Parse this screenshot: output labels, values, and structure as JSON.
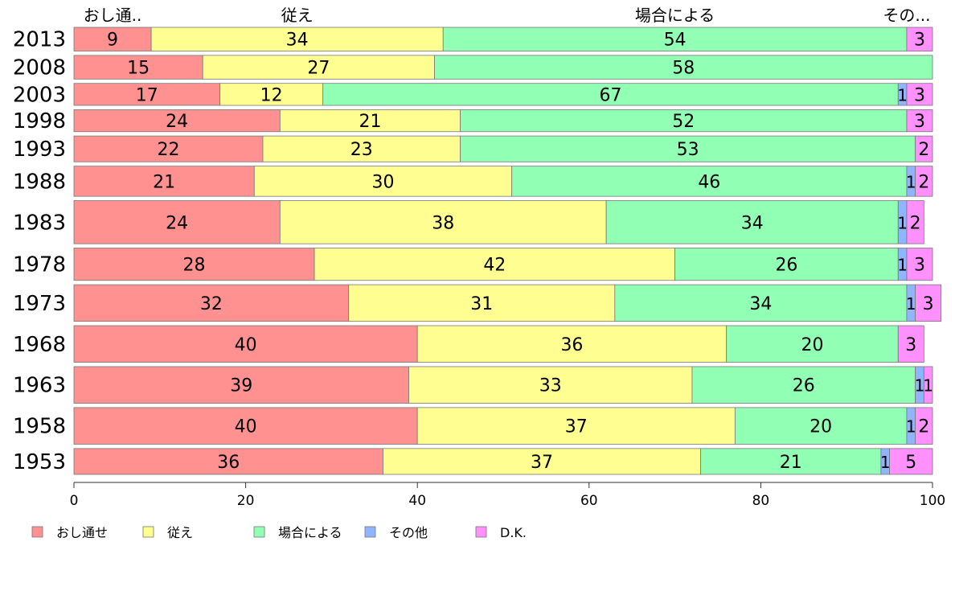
{
  "chart_data": {
    "type": "bar",
    "orientation": "horizontal",
    "stacked": true,
    "categories": [
      "2013",
      "2008",
      "2003",
      "1998",
      "1993",
      "1988",
      "1983",
      "1978",
      "1973",
      "1968",
      "1963",
      "1958",
      "1953"
    ],
    "series": [
      {
        "name": "おし通せ",
        "color": "#ff9191",
        "values": [
          9,
          15,
          17,
          24,
          22,
          21,
          24,
          28,
          32,
          40,
          39,
          40,
          36
        ]
      },
      {
        "name": "従え",
        "color": "#ffff91",
        "values": [
          34,
          27,
          12,
          21,
          23,
          30,
          38,
          42,
          31,
          36,
          33,
          37,
          37
        ]
      },
      {
        "name": "場合による",
        "color": "#91ffb4",
        "values": [
          54,
          58,
          67,
          52,
          53,
          46,
          34,
          26,
          34,
          20,
          26,
          20,
          21
        ]
      },
      {
        "name": "その他",
        "color": "#91b4ff",
        "values": [
          0,
          0,
          1,
          0,
          0,
          1,
          1,
          1,
          1,
          0,
          1,
          1,
          1
        ]
      },
      {
        "name": "D.K.",
        "color": "#ff91ff",
        "values": [
          3,
          0,
          3,
          3,
          2,
          2,
          2,
          3,
          3,
          3,
          1,
          2,
          5
        ]
      }
    ],
    "rel_heights": [
      0.55,
      0.55,
      0.51,
      0.51,
      0.6,
      0.7,
      1.0,
      0.75,
      0.85,
      0.85,
      0.85,
      0.85,
      0.6
    ],
    "top_labels": [
      "おし通..",
      "従え",
      "場合による",
      "その..."
    ],
    "x_ticks": [
      "0",
      "20",
      "40",
      "60",
      "80",
      "100"
    ],
    "xlim": [
      0,
      100
    ],
    "legend": [
      "おし通せ",
      "従え",
      "場合による",
      "その他",
      "D.K."
    ],
    "legend_position": "bottom"
  }
}
